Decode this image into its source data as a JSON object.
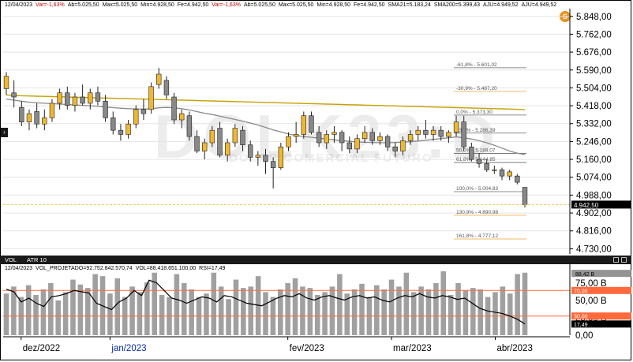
{
  "info_bar": {
    "items": [
      {
        "text": "12/04/2023",
        "neg": false
      },
      {
        "text": "Var=-1,63%",
        "neg": true
      },
      {
        "text": "Ab=5.025,50",
        "neg": false
      },
      {
        "text": "Max=5.025,50",
        "neg": false
      },
      {
        "text": "Min=4.928,50",
        "neg": false
      },
      {
        "text": "Fe=4.942,50",
        "neg": false
      },
      {
        "text": "Var=-1,63%",
        "neg": true
      },
      {
        "text": "Ab=5.025,50",
        "neg": false
      },
      {
        "text": "Max=5.025,50",
        "neg": false
      },
      {
        "text": "Min=4.928,50",
        "neg": false
      },
      {
        "text": "Fe=4.942,50",
        "neg": false
      },
      {
        "text": "SMA21=5.183,24",
        "neg": false
      },
      {
        "text": "SMA200=5.399,43",
        "neg": false
      },
      {
        "text": "AJU=4.949,52",
        "neg": false
      },
      {
        "text": "AJU=4.949,52",
        "neg": false
      }
    ]
  },
  "watermark": {
    "symbol": "DOLK23:D",
    "subtitle": "DÓLAR COMERCIAL FUTURO"
  },
  "badge": {
    "letter": "S"
  },
  "side_arrow": "›",
  "indicator_bar": {
    "tab_vol": "VOL",
    "tab_atr": "ATR 10"
  },
  "sub_info": {
    "items": [
      {
        "text": "12/04/2023",
        "color": "#000000"
      },
      {
        "text": "VOL_PROJETADO=92.752.842.570,74",
        "color": "#000000"
      },
      {
        "text": "VOL=88.418.651.100,00",
        "color": "#000000"
      },
      {
        "text": "RSI=17,49",
        "color": "#000000"
      }
    ]
  },
  "colors": {
    "up_candle": "#f0b830",
    "down_candle": "#888888",
    "sma21": "#8a8a8a",
    "sma200": "#c8a000",
    "fib_retracement": "#666666",
    "fib_extension": "#f0a030",
    "volume_bar": "#a0a0a0",
    "rsi_line": "#000000",
    "rsi_level": "#ff6a3c"
  },
  "chart_data": [
    {
      "type": "candlestick",
      "title": "DOLK23:D",
      "subtitle": "DÓLAR COMERCIAL FUTURO",
      "x_tick_labels": [
        "dez/2022",
        "jan/2023",
        "fev/2023",
        "mar/2023",
        "abr/2023"
      ],
      "x_tick_label_highlight": "jan/2023",
      "y_tick_labels": [
        "5.848,00",
        "5.762,00",
        "5.676,00",
        "5.590,00",
        "5.504,00",
        "5.418,00",
        "5.332,00",
        "5.246,00",
        "5.160,00",
        "5.074,00",
        "4.988,00",
        "4.902,00",
        "4.816,00",
        "4.730,00"
      ],
      "y_ticks": [
        5848,
        5762,
        5676,
        5590,
        5504,
        5418,
        5332,
        5246,
        5160,
        5074,
        4988,
        4902,
        4816,
        4730
      ],
      "ylim": [
        4705,
        5885
      ],
      "grid": true,
      "last_price_label": "4.942,50",
      "last_price": 4942.5,
      "candles": [
        {
          "o": 5500,
          "h": 5580,
          "l": 5470,
          "c": 5560
        },
        {
          "o": 5480,
          "h": 5540,
          "l": 5410,
          "c": 5460
        },
        {
          "o": 5410,
          "h": 5440,
          "l": 5320,
          "c": 5340
        },
        {
          "o": 5340,
          "h": 5400,
          "l": 5300,
          "c": 5380
        },
        {
          "o": 5390,
          "h": 5430,
          "l": 5310,
          "c": 5330
        },
        {
          "o": 5330,
          "h": 5400,
          "l": 5300,
          "c": 5360
        },
        {
          "o": 5360,
          "h": 5450,
          "l": 5340,
          "c": 5430
        },
        {
          "o": 5430,
          "h": 5500,
          "l": 5400,
          "c": 5480
        },
        {
          "o": 5480,
          "h": 5510,
          "l": 5400,
          "c": 5420
        },
        {
          "o": 5420,
          "h": 5480,
          "l": 5390,
          "c": 5460
        },
        {
          "o": 5460,
          "h": 5520,
          "l": 5420,
          "c": 5430
        },
        {
          "o": 5430,
          "h": 5500,
          "l": 5400,
          "c": 5480
        },
        {
          "o": 5480,
          "h": 5510,
          "l": 5420,
          "c": 5440
        },
        {
          "o": 5440,
          "h": 5470,
          "l": 5340,
          "c": 5360
        },
        {
          "o": 5360,
          "h": 5390,
          "l": 5280,
          "c": 5300
        },
        {
          "o": 5300,
          "h": 5330,
          "l": 5250,
          "c": 5280
        },
        {
          "o": 5280,
          "h": 5350,
          "l": 5260,
          "c": 5330
        },
        {
          "o": 5330,
          "h": 5420,
          "l": 5310,
          "c": 5400
        },
        {
          "o": 5400,
          "h": 5450,
          "l": 5350,
          "c": 5380
        },
        {
          "o": 5400,
          "h": 5530,
          "l": 5380,
          "c": 5510
        },
        {
          "o": 5520,
          "h": 5600,
          "l": 5500,
          "c": 5570
        },
        {
          "o": 5540,
          "h": 5560,
          "l": 5450,
          "c": 5470
        },
        {
          "o": 5460,
          "h": 5480,
          "l": 5330,
          "c": 5350
        },
        {
          "o": 5350,
          "h": 5400,
          "l": 5310,
          "c": 5380
        },
        {
          "o": 5370,
          "h": 5390,
          "l": 5250,
          "c": 5270
        },
        {
          "o": 5270,
          "h": 5300,
          "l": 5190,
          "c": 5200
        },
        {
          "o": 5200,
          "h": 5260,
          "l": 5160,
          "c": 5240
        },
        {
          "o": 5240,
          "h": 5320,
          "l": 5220,
          "c": 5300
        },
        {
          "o": 5310,
          "h": 5340,
          "l": 5170,
          "c": 5180
        },
        {
          "o": 5180,
          "h": 5260,
          "l": 5150,
          "c": 5240
        },
        {
          "o": 5240,
          "h": 5330,
          "l": 5220,
          "c": 5310
        },
        {
          "o": 5300,
          "h": 5320,
          "l": 5200,
          "c": 5230
        },
        {
          "o": 5230,
          "h": 5250,
          "l": 5150,
          "c": 5170
        },
        {
          "o": 5170,
          "h": 5200,
          "l": 5130,
          "c": 5180
        },
        {
          "o": 5180,
          "h": 5210,
          "l": 5090,
          "c": 5150
        },
        {
          "o": 5150,
          "h": 5170,
          "l": 5020,
          "c": 5120
        },
        {
          "o": 5120,
          "h": 5240,
          "l": 5110,
          "c": 5220
        },
        {
          "o": 5220,
          "h": 5290,
          "l": 5200,
          "c": 5270
        },
        {
          "o": 5270,
          "h": 5340,
          "l": 5240,
          "c": 5280
        },
        {
          "o": 5280,
          "h": 5390,
          "l": 5260,
          "c": 5370
        },
        {
          "o": 5370,
          "h": 5390,
          "l": 5280,
          "c": 5290
        },
        {
          "o": 5290,
          "h": 5320,
          "l": 5220,
          "c": 5240
        },
        {
          "o": 5240,
          "h": 5300,
          "l": 5210,
          "c": 5280
        },
        {
          "o": 5280,
          "h": 5320,
          "l": 5240,
          "c": 5290
        },
        {
          "o": 5290,
          "h": 5300,
          "l": 5200,
          "c": 5240
        },
        {
          "o": 5240,
          "h": 5270,
          "l": 5190,
          "c": 5210
        },
        {
          "o": 5210,
          "h": 5280,
          "l": 5190,
          "c": 5260
        },
        {
          "o": 5260,
          "h": 5320,
          "l": 5240,
          "c": 5290
        },
        {
          "o": 5290,
          "h": 5310,
          "l": 5230,
          "c": 5250
        },
        {
          "o": 5250,
          "h": 5290,
          "l": 5230,
          "c": 5270
        },
        {
          "o": 5270,
          "h": 5280,
          "l": 5200,
          "c": 5220
        },
        {
          "o": 5220,
          "h": 5240,
          "l": 5170,
          "c": 5200
        },
        {
          "o": 5200,
          "h": 5270,
          "l": 5180,
          "c": 5250
        },
        {
          "o": 5250,
          "h": 5300,
          "l": 5230,
          "c": 5280
        },
        {
          "o": 5280,
          "h": 5320,
          "l": 5250,
          "c": 5300
        },
        {
          "o": 5300,
          "h": 5350,
          "l": 5260,
          "c": 5280
        },
        {
          "o": 5280,
          "h": 5320,
          "l": 5250,
          "c": 5300
        },
        {
          "o": 5300,
          "h": 5320,
          "l": 5250,
          "c": 5270
        },
        {
          "o": 5270,
          "h": 5300,
          "l": 5240,
          "c": 5290
        },
        {
          "o": 5290,
          "h": 5370,
          "l": 5270,
          "c": 5340
        },
        {
          "o": 5340,
          "h": 5370,
          "l": 5200,
          "c": 5220
        },
        {
          "o": 5220,
          "h": 5240,
          "l": 5150,
          "c": 5160
        },
        {
          "o": 5160,
          "h": 5190,
          "l": 5120,
          "c": 5140
        },
        {
          "o": 5140,
          "h": 5160,
          "l": 5100,
          "c": 5110
        },
        {
          "o": 5110,
          "h": 5130,
          "l": 5090,
          "c": 5110
        },
        {
          "o": 5110,
          "h": 5120,
          "l": 5060,
          "c": 5080
        },
        {
          "o": 5080,
          "h": 5110,
          "l": 5060,
          "c": 5100
        },
        {
          "o": 5080,
          "h": 5090,
          "l": 5040,
          "c": 5050
        },
        {
          "o": 5025.5,
          "h": 5025.5,
          "l": 4928.5,
          "c": 4942.5
        }
      ],
      "sma21": [
        5450,
        5445,
        5440,
        5435,
        5432,
        5430,
        5428,
        5426,
        5424,
        5422,
        5420,
        5418,
        5415,
        5412,
        5409,
        5406,
        5404,
        5403,
        5402,
        5404,
        5408,
        5410,
        5408,
        5404,
        5398,
        5390,
        5382,
        5376,
        5368,
        5360,
        5352,
        5344,
        5335,
        5325,
        5314,
        5302,
        5292,
        5282,
        5275,
        5270,
        5266,
        5262,
        5258,
        5254,
        5250,
        5247,
        5244,
        5242,
        5241,
        5240,
        5240,
        5241,
        5243,
        5245,
        5248,
        5252,
        5256,
        5260,
        5264,
        5268,
        5264,
        5258,
        5250,
        5240,
        5228,
        5214,
        5200,
        5190,
        5183
      ],
      "sma200": [
        5470,
        5468,
        5466,
        5465,
        5464,
        5463,
        5462,
        5461,
        5460,
        5459,
        5458,
        5457,
        5456,
        5455,
        5454,
        5453,
        5452,
        5451,
        5450,
        5449,
        5448,
        5447,
        5446,
        5445,
        5444,
        5443,
        5442,
        5441,
        5440,
        5439,
        5438,
        5437,
        5436,
        5435,
        5434,
        5433,
        5432,
        5431,
        5430,
        5429,
        5428,
        5427,
        5426,
        5425,
        5424,
        5423,
        5422,
        5421,
        5420,
        5419,
        5418,
        5417,
        5416,
        5415,
        5414,
        5413,
        5412,
        5411,
        5410,
        5409,
        5408,
        5407,
        5406,
        5405,
        5404,
        5403,
        5402,
        5401,
        5399
      ],
      "fibonacci": [
        {
          "label": "-61,8% - 5.601,02",
          "value": 5601.02,
          "kind": "retracement"
        },
        {
          "label": "-30,9% - 5.487,20",
          "value": 5487.2,
          "kind": "extension"
        },
        {
          "label": "0,0% - 5.373,30",
          "value": 5373.3,
          "kind": "retracement"
        },
        {
          "label": "23,6% - 5.286,39",
          "value": 5286.39,
          "kind": "retracement"
        },
        {
          "label": "50,0% - 5.189,07",
          "value": 5189.07,
          "kind": "retracement"
        },
        {
          "label": "61,8% - 5.144,85",
          "value": 5144.85,
          "kind": "retracement"
        },
        {
          "label": "100,0% - 5.004,83",
          "value": 5004.83,
          "kind": "retracement"
        },
        {
          "label": "130,9% - 4.890,98",
          "value": 4890.98,
          "kind": "extension"
        },
        {
          "label": "161,8% - 4.777,12",
          "value": 4777.12,
          "kind": "extension"
        }
      ]
    },
    {
      "type": "bar",
      "title": "VOL",
      "series": [
        {
          "name": "VOL",
          "values": [
            60,
            70,
            55,
            72,
            58,
            66,
            75,
            50,
            62,
            80,
            73,
            68,
            88,
            85,
            60,
            82,
            55,
            70,
            62,
            76,
            90,
            58,
            55,
            88,
            75,
            66,
            55,
            60,
            90,
            70,
            52,
            80,
            68,
            70,
            85,
            62,
            55,
            66,
            75,
            82,
            70,
            68,
            58,
            62,
            70,
            88,
            60,
            66,
            74,
            55,
            72,
            66,
            80,
            70,
            90,
            62,
            70,
            66,
            75,
            92,
            58,
            75,
            65,
            68,
            66,
            55,
            62,
            70,
            60,
            88,
            90
          ]
        },
        {
          "name": "RSI",
          "values": [
            72,
            68,
            52,
            58,
            50,
            45,
            60,
            62,
            65,
            70,
            68,
            66,
            50,
            45,
            40,
            52,
            58,
            70,
            62,
            86,
            82,
            70,
            58,
            55,
            50,
            55,
            60,
            58,
            52,
            62,
            60,
            55,
            50,
            48,
            46,
            52,
            58,
            62,
            60,
            65,
            58,
            55,
            60,
            62,
            58,
            55,
            60,
            62,
            58,
            60,
            55,
            52,
            58,
            62,
            60,
            65,
            60,
            58,
            62,
            60,
            56,
            58,
            50,
            42,
            38,
            36,
            34,
            30,
            25,
            17.49
          ]
        }
      ],
      "y_tick_labels": [
        "88,42 B",
        "75,00 B",
        "50,00 B",
        "25,00 B",
        "0,00"
      ],
      "y_ticks": [
        88.42,
        75,
        50,
        25,
        0
      ],
      "ylim": [
        0,
        92
      ],
      "level_labels": [
        "70,00",
        "30,00",
        "17,49"
      ],
      "levels": [
        70,
        30
      ],
      "rsi_last": 17.49
    }
  ]
}
